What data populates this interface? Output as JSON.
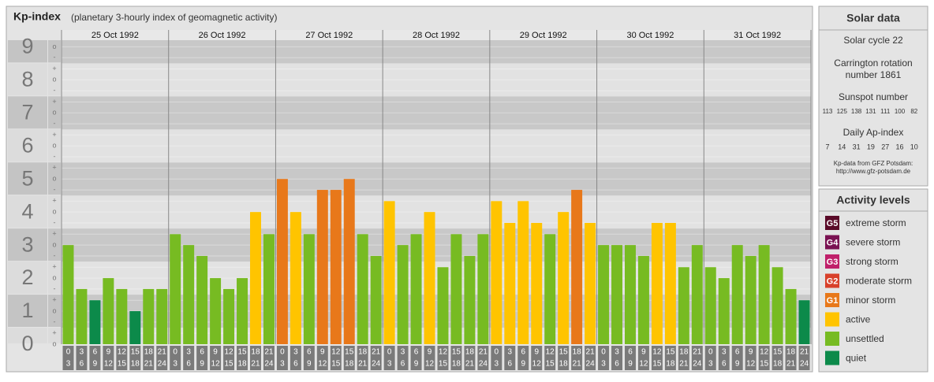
{
  "chart_data": {
    "type": "bar",
    "title": "Kp-index",
    "subtitle": "(planetary 3-hourly index of geomagnetic activity)",
    "ylim": [
      0,
      9.2
    ],
    "yticks": [
      0,
      1,
      2,
      3,
      4,
      5,
      6,
      7,
      8,
      9
    ],
    "yminorticks": [
      {
        "value": 0,
        "label": "o"
      },
      {
        "value": 0.33,
        "label": "+"
      },
      {
        "value": 0.67,
        "label": "-"
      },
      {
        "value": 1,
        "label": "o"
      },
      {
        "value": 1.33,
        "label": "+"
      },
      {
        "value": 1.67,
        "label": "-"
      },
      {
        "value": 2,
        "label": "o"
      },
      {
        "value": 2.33,
        "label": "+"
      },
      {
        "value": 2.67,
        "label": "-"
      },
      {
        "value": 3,
        "label": "o"
      },
      {
        "value": 3.33,
        "label": "+"
      },
      {
        "value": 3.67,
        "label": "-"
      },
      {
        "value": 4,
        "label": "o"
      },
      {
        "value": 4.33,
        "label": "+"
      },
      {
        "value": 4.67,
        "label": "-"
      },
      {
        "value": 5,
        "label": "o"
      },
      {
        "value": 5.33,
        "label": "+"
      },
      {
        "value": 5.67,
        "label": "-"
      },
      {
        "value": 6,
        "label": "o"
      },
      {
        "value": 6.33,
        "label": "+"
      },
      {
        "value": 6.67,
        "label": "-"
      },
      {
        "value": 7,
        "label": "o"
      },
      {
        "value": 7.33,
        "label": "+"
      },
      {
        "value": 7.67,
        "label": "-"
      },
      {
        "value": 8,
        "label": "o"
      },
      {
        "value": 8.33,
        "label": "+"
      },
      {
        "value": 8.67,
        "label": "-"
      },
      {
        "value": 9,
        "label": "o"
      }
    ],
    "hour_labels": [
      [
        "0",
        "3"
      ],
      [
        "3",
        "6"
      ],
      [
        "6",
        "9"
      ],
      [
        "9",
        "12"
      ],
      [
        "12",
        "15"
      ],
      [
        "15",
        "18"
      ],
      [
        "18",
        "21"
      ],
      [
        "21",
        "24"
      ]
    ],
    "days": [
      {
        "date": "25 Oct 1992",
        "values": [
          3,
          1.67,
          1.33,
          2,
          1.67,
          1,
          1.67,
          1.67
        ],
        "colors": [
          "#77bb22",
          "#77bb22",
          "#0c8a4a",
          "#77bb22",
          "#77bb22",
          "#0c8a4a",
          "#77bb22",
          "#77bb22"
        ]
      },
      {
        "date": "26 Oct 1992",
        "values": [
          3.33,
          3,
          2.67,
          2,
          1.67,
          2,
          4,
          3.33
        ],
        "colors": [
          "#77bb22",
          "#77bb22",
          "#77bb22",
          "#77bb22",
          "#77bb22",
          "#77bb22",
          "#ffc400",
          "#77bb22"
        ]
      },
      {
        "date": "27 Oct 1992",
        "values": [
          5,
          4,
          3.33,
          4.67,
          4.67,
          5,
          3.33,
          2.67
        ],
        "colors": [
          "#e8781a",
          "#ffc400",
          "#77bb22",
          "#e8781a",
          "#e8781a",
          "#e8781a",
          "#77bb22",
          "#77bb22"
        ]
      },
      {
        "date": "28 Oct 1992",
        "values": [
          4.33,
          3,
          3.33,
          4,
          2.33,
          3.33,
          2.67,
          3.33
        ],
        "colors": [
          "#ffc400",
          "#77bb22",
          "#77bb22",
          "#ffc400",
          "#77bb22",
          "#77bb22",
          "#77bb22",
          "#77bb22"
        ]
      },
      {
        "date": "29 Oct 1992",
        "values": [
          4.33,
          3.67,
          4.33,
          3.67,
          3.33,
          4,
          4.67,
          3.67
        ],
        "colors": [
          "#ffc400",
          "#ffc400",
          "#ffc400",
          "#ffc400",
          "#77bb22",
          "#ffc400",
          "#e8781a",
          "#ffc400"
        ]
      },
      {
        "date": "30 Oct 1992",
        "values": [
          3,
          3,
          3,
          2.67,
          3.67,
          3.67,
          2.33,
          3
        ],
        "colors": [
          "#77bb22",
          "#77bb22",
          "#77bb22",
          "#77bb22",
          "#ffc400",
          "#ffc400",
          "#77bb22",
          "#77bb22"
        ]
      },
      {
        "date": "31 Oct 1992",
        "values": [
          2.33,
          2,
          3,
          2.67,
          3,
          2.33,
          1.67,
          1.33
        ],
        "colors": [
          "#77bb22",
          "#77bb22",
          "#77bb22",
          "#77bb22",
          "#77bb22",
          "#77bb22",
          "#77bb22",
          "#0c8a4a"
        ]
      }
    ],
    "legend_title": "Activity levels",
    "legend": [
      {
        "code": "G5",
        "label": "extreme storm",
        "color": "#5a0a28"
      },
      {
        "code": "G4",
        "label": "severe storm",
        "color": "#7a1252"
      },
      {
        "code": "G3",
        "label": "strong storm",
        "color": "#c0206a"
      },
      {
        "code": "G2",
        "label": "moderate storm",
        "color": "#d8402a"
      },
      {
        "code": "G1",
        "label": "minor storm",
        "color": "#e8781a"
      },
      {
        "label": "active",
        "color": "#ffc400"
      },
      {
        "label": "unsettled",
        "color": "#77bb22"
      },
      {
        "label": "quiet",
        "color": "#0c8a4a"
      }
    ]
  },
  "solar_data": {
    "title": "Solar data",
    "cycle": "Solar cycle 22",
    "carrington": [
      "Carrington rotation",
      "number 1861"
    ],
    "sunspot_title": "Sunspot number",
    "sunspot_numbers": [
      113,
      125,
      138,
      131,
      111,
      100,
      82
    ],
    "ap_title": "Daily Ap-index",
    "ap_index": [
      7,
      14,
      31,
      19,
      27,
      16,
      10
    ],
    "source": [
      "Kp-data from GFZ Potsdam:",
      "http://www.gfz-potsdam.de"
    ]
  }
}
